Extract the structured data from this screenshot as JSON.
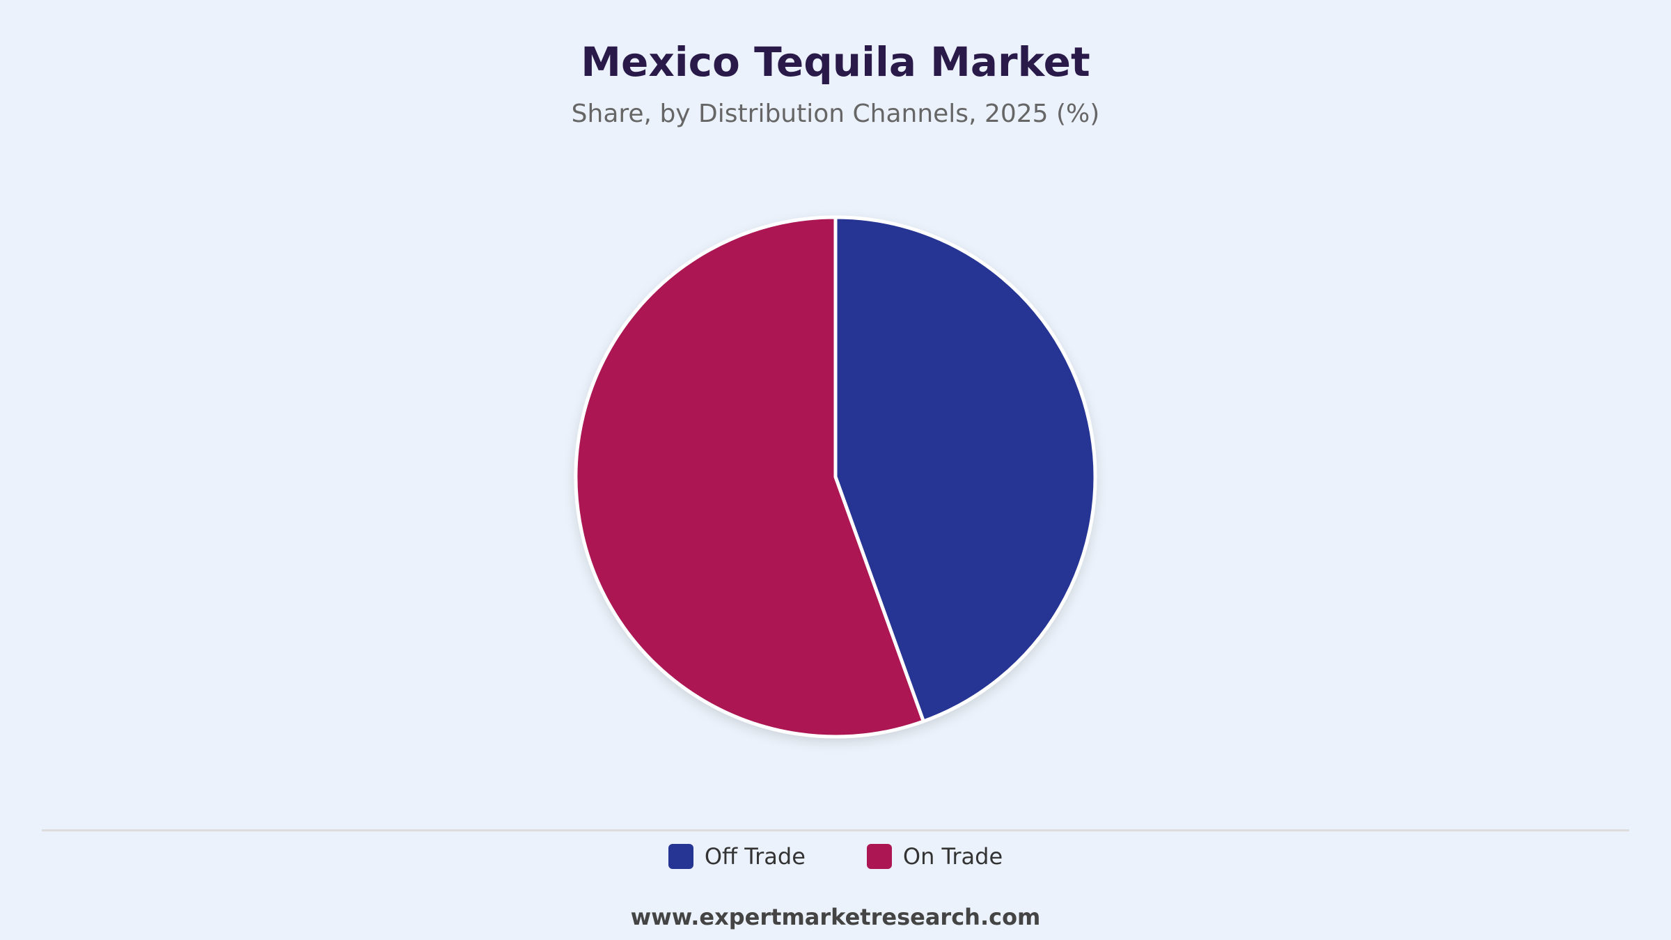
{
  "chart_data": {
    "type": "pie",
    "title": "Mexico Tequila Market",
    "subtitle": "Share, by Distribution Channels, 2025 (%)",
    "categories": [
      "Off Trade",
      "On Trade"
    ],
    "values": [
      44.5,
      55.5
    ],
    "colors": [
      "#263593",
      "#AC1653"
    ],
    "legend_position": "bottom",
    "start_angle": "12 o'clock",
    "direction": "clockwise"
  },
  "footer": {
    "source": "www.expertmarketresearch.com"
  }
}
